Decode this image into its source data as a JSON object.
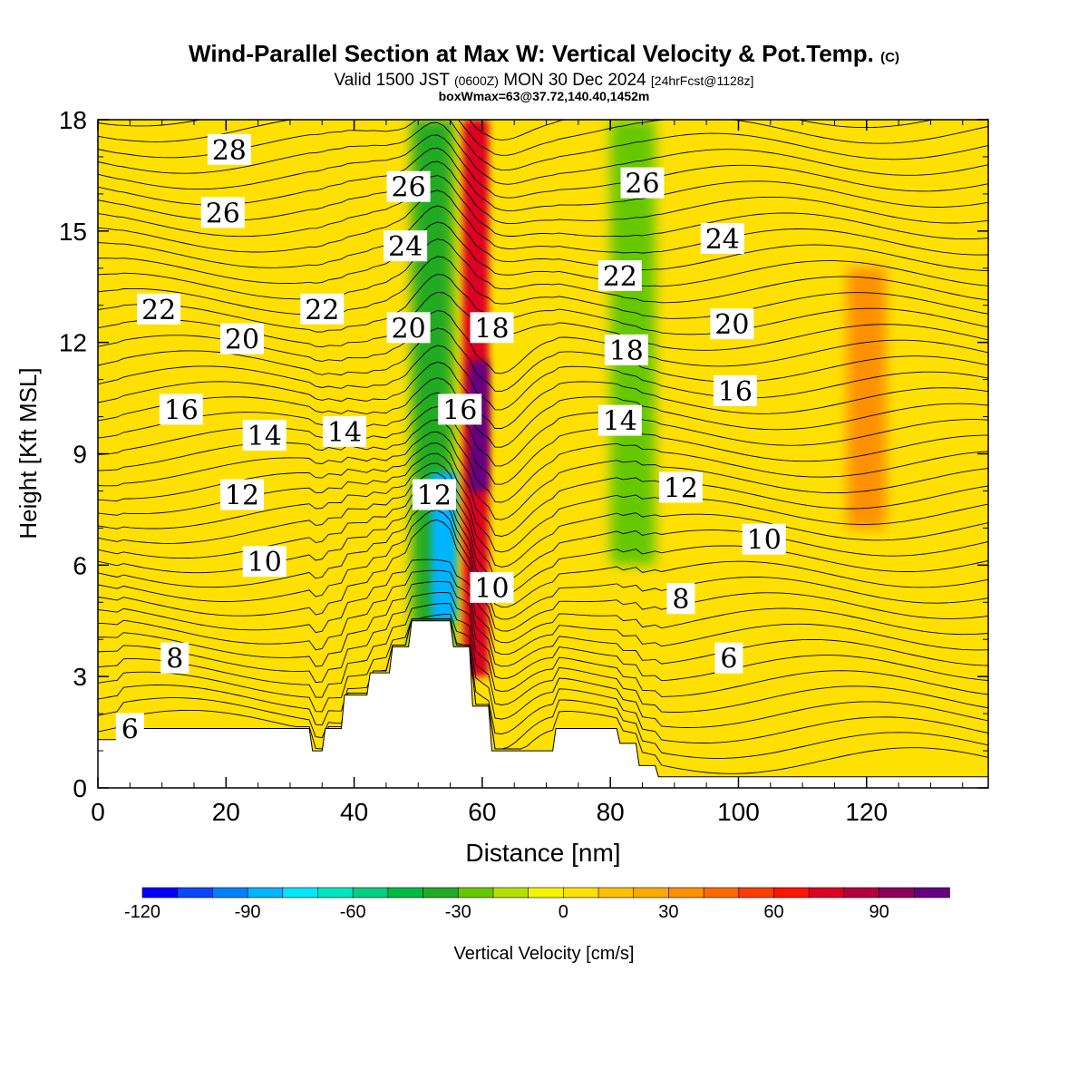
{
  "title": {
    "main": "Wind-Parallel Section at Max W: Vertical Velocity & Pot.Temp.",
    "copyright": "(C)",
    "valid_prefix": "Valid 1500 JST",
    "valid_utc": "(0600Z)",
    "valid_date": "MON 30 Dec 2024",
    "forecast": "[24hrFcst@1128z]",
    "box_w_max": "boxWmax=63@37.72,140.40,1452m"
  },
  "chart_data": {
    "type": "heatmap",
    "xlabel": "Distance [nm]",
    "ylabel": "Height [Kft MSL]",
    "xlim": [
      0,
      139
    ],
    "ylim": [
      0,
      18
    ],
    "x_ticks": [
      0,
      20,
      40,
      60,
      80,
      100,
      120
    ],
    "y_ticks": [
      0,
      3,
      6,
      9,
      12,
      15,
      18
    ],
    "colorbar": {
      "label": "Vertical Velocity [cm/s]",
      "min": -120,
      "max": 110,
      "step": 10,
      "ticks": [
        -120,
        -90,
        -60,
        -30,
        0,
        30,
        60,
        90
      ],
      "colors": [
        "#0000ff",
        "#0a46ff",
        "#0080ff",
        "#00b4ff",
        "#00e6ff",
        "#00e6c0",
        "#00d080",
        "#00bb40",
        "#22aa22",
        "#66c800",
        "#b4e000",
        "#f4f400",
        "#ffe000",
        "#ffc000",
        "#ffa800",
        "#ff9000",
        "#ff6a00",
        "#ff3c00",
        "#ff1400",
        "#dd0022",
        "#b4003c",
        "#8c005a",
        "#640082"
      ]
    },
    "vertical_velocity_bands": [
      {
        "x": [
          49,
          55.5
        ],
        "y": [
          2.5,
          18
        ],
        "w": -40
      },
      {
        "x": [
          52,
          56
        ],
        "y": [
          4.5,
          8.5
        ],
        "w": -90
      },
      {
        "x": [
          57,
          61
        ],
        "y": [
          3,
          18
        ],
        "w": 75
      },
      {
        "x": [
          58,
          61
        ],
        "y": [
          8,
          11.5
        ],
        "w": 100
      },
      {
        "x": [
          80,
          87
        ],
        "y": [
          6,
          18
        ],
        "w": -30
      },
      {
        "x": [
          117,
          123
        ],
        "y": [
          7,
          14
        ],
        "w": 30
      }
    ],
    "terrain_profile": {
      "x": [
        0,
        3,
        4,
        33,
        33.5,
        35,
        35.5,
        38,
        38.5,
        42,
        42.5,
        45.5,
        46,
        48.5,
        49,
        55,
        55.5,
        58,
        58.5,
        61,
        61.5,
        71,
        71.5,
        81,
        81.5,
        84,
        84.5,
        87,
        87.5,
        139
      ],
      "height_kft": [
        1.3,
        1.3,
        1.6,
        1.6,
        1.0,
        1.0,
        1.6,
        1.6,
        2.5,
        2.5,
        3.1,
        3.1,
        3.8,
        3.8,
        4.5,
        4.5,
        3.8,
        3.8,
        2.2,
        2.2,
        1.0,
        1.0,
        1.6,
        1.6,
        1.2,
        1.2,
        0.6,
        0.6,
        0.3,
        0.3
      ]
    },
    "potential_temperature_labels": [
      {
        "text": "28",
        "x": 20.5,
        "y": 17.2
      },
      {
        "text": "26",
        "x": 19.5,
        "y": 15.5
      },
      {
        "text": "22",
        "x": 9.5,
        "y": 12.9
      },
      {
        "text": "20",
        "x": 22.5,
        "y": 12.1
      },
      {
        "text": "16",
        "x": 13,
        "y": 10.2
      },
      {
        "text": "14",
        "x": 26,
        "y": 9.5
      },
      {
        "text": "12",
        "x": 22.5,
        "y": 7.9
      },
      {
        "text": "10",
        "x": 26,
        "y": 6.1
      },
      {
        "text": "8",
        "x": 12,
        "y": 3.5
      },
      {
        "text": "6",
        "x": 5,
        "y": 1.6
      },
      {
        "text": "22",
        "x": 35,
        "y": 12.9
      },
      {
        "text": "14",
        "x": 38.5,
        "y": 9.6
      },
      {
        "text": "26",
        "x": 48.5,
        "y": 16.2
      },
      {
        "text": "24",
        "x": 48,
        "y": 14.6
      },
      {
        "text": "20",
        "x": 48.5,
        "y": 12.4
      },
      {
        "text": "16",
        "x": 56.5,
        "y": 10.2
      },
      {
        "text": "12",
        "x": 52.5,
        "y": 7.9
      },
      {
        "text": "18",
        "x": 61.5,
        "y": 12.4
      },
      {
        "text": "10",
        "x": 61.5,
        "y": 5.4
      },
      {
        "text": "26",
        "x": 85,
        "y": 16.3
      },
      {
        "text": "22",
        "x": 81.5,
        "y": 13.8
      },
      {
        "text": "18",
        "x": 82.5,
        "y": 11.8
      },
      {
        "text": "14",
        "x": 81.5,
        "y": 9.9
      },
      {
        "text": "12",
        "x": 91,
        "y": 8.1
      },
      {
        "text": "10",
        "x": 104,
        "y": 6.7
      },
      {
        "text": "8",
        "x": 91,
        "y": 5.1
      },
      {
        "text": "6",
        "x": 98.5,
        "y": 3.5
      },
      {
        "text": "24",
        "x": 97.5,
        "y": 14.8
      },
      {
        "text": "20",
        "x": 99,
        "y": 12.5
      },
      {
        "text": "16",
        "x": 99.5,
        "y": 10.7
      }
    ]
  }
}
